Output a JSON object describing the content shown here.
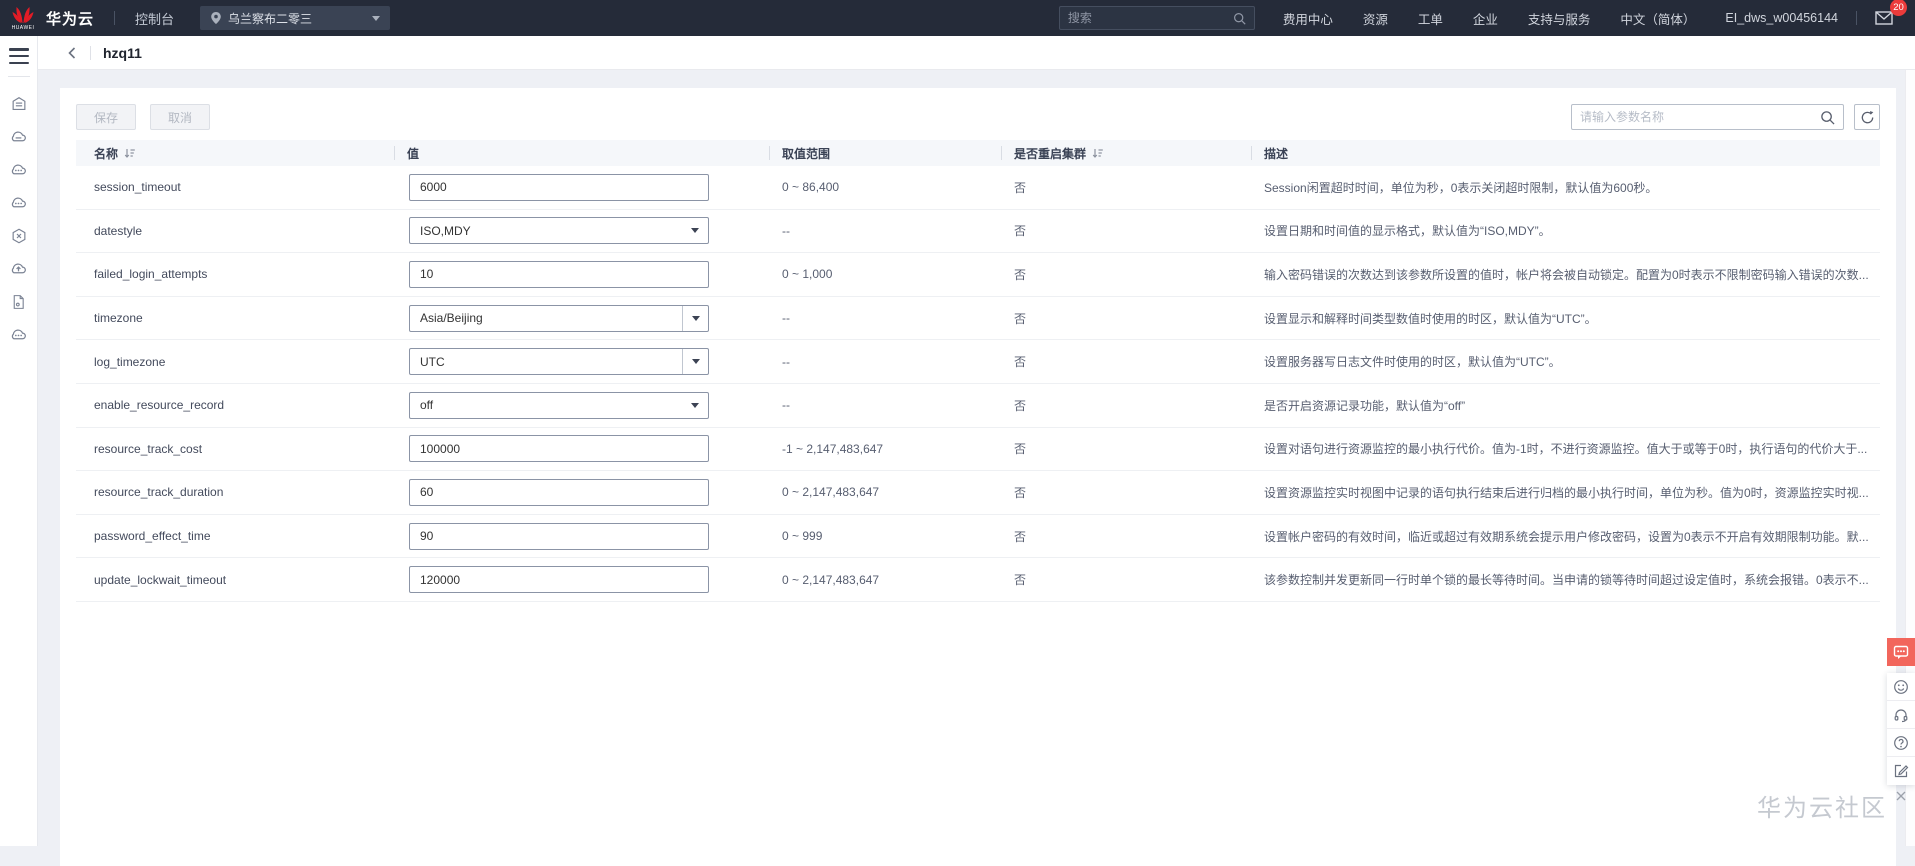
{
  "topbar": {
    "brand": "华为云",
    "logo_text": "HUAWEI",
    "console": "控制台",
    "region": "乌兰察布二零三",
    "search_placeholder": "搜索",
    "menu": [
      "费用中心",
      "资源",
      "工单",
      "企业",
      "支持与服务",
      "中文（简体）",
      "EI_dws_w00456144"
    ],
    "badge_count": "20"
  },
  "sidebar": {
    "icons": [
      "workbench-icon",
      "cloud-server-icon",
      "cloud-service-icon",
      "cloud-cluster-icon",
      "hexagon-x-icon",
      "cloud-upload-icon",
      "document-icon",
      "cloud-dots-icon"
    ]
  },
  "page": {
    "title": "hzq11",
    "save_label": "保存",
    "cancel_label": "取消",
    "search_placeholder": "请输入参数名称",
    "watermark": "华为云社区"
  },
  "table": {
    "headers": {
      "name": "名称",
      "value": "值",
      "range": "取值范围",
      "restart": "是否重启集群",
      "desc": "描述"
    },
    "rows": [
      {
        "name": "session_timeout",
        "control": "input",
        "value": "6000",
        "range": "0 ~ 86,400",
        "restart": "否",
        "desc": "Session闲置超时时间，单位为秒，0表示关闭超时限制，默认值为600秒。"
      },
      {
        "name": "datestyle",
        "control": "select",
        "value": "ISO,MDY",
        "range": "--",
        "restart": "否",
        "desc": "设置日期和时间值的显示格式，默认值为“ISO,MDY”。"
      },
      {
        "name": "failed_login_attempts",
        "control": "input",
        "value": "10",
        "range": "0 ~ 1,000",
        "restart": "否",
        "desc": "输入密码错误的次数达到该参数所设置的值时，帐户将会被自动锁定。配置为0时表示不限制密码输入错误的次数..."
      },
      {
        "name": "timezone",
        "control": "combo",
        "value": "Asia/Beijing",
        "range": "--",
        "restart": "否",
        "desc": "设置显示和解释时间类型数值时使用的时区，默认值为“UTC”。"
      },
      {
        "name": "log_timezone",
        "control": "combo",
        "value": "UTC",
        "range": "--",
        "restart": "否",
        "desc": "设置服务器写日志文件时使用的时区，默认值为“UTC”。"
      },
      {
        "name": "enable_resource_record",
        "control": "select",
        "value": "off",
        "range": "--",
        "restart": "否",
        "desc": "是否开启资源记录功能，默认值为“off”"
      },
      {
        "name": "resource_track_cost",
        "control": "input",
        "value": "100000",
        "range": "-1 ~ 2,147,483,647",
        "restart": "否",
        "desc": "设置对语句进行资源监控的最小执行代价。值为-1时，不进行资源监控。值大于或等于0时，执行语句的代价大于..."
      },
      {
        "name": "resource_track_duration",
        "control": "input",
        "value": "60",
        "range": "0 ~ 2,147,483,647",
        "restart": "否",
        "desc": "设置资源监控实时视图中记录的语句执行结束后进行归档的最小执行时间，单位为秒。值为0时，资源监控实时视..."
      },
      {
        "name": "password_effect_time",
        "control": "input",
        "value": "90",
        "range": "0 ~ 999",
        "restart": "否",
        "desc": "设置帐户密码的有效时间，临近或超过有效期系统会提示用户修改密码，设置为0表示不开启有效期限制功能。默..."
      },
      {
        "name": "update_lockwait_timeout",
        "control": "input",
        "value": "120000",
        "range": "0 ~ 2,147,483,647",
        "restart": "否",
        "desc": "该参数控制并发更新同一行时单个锁的最长等待时间。当申请的锁等待时间超过设定值时，系统会报错。0表示不..."
      }
    ]
  },
  "float_toolbar": {
    "icons": [
      "chat-icon",
      "feedback-smiley-icon",
      "support-headset-icon",
      "help-question-icon",
      "survey-edit-icon",
      "close-icon"
    ]
  },
  "colors": {
    "topbar_bg": "#252b39",
    "badge_red": "#eb3b3b",
    "chat_button_red": "#f2665c",
    "page_bg": "#eef0f5",
    "table_header_bg": "#f5f7fa"
  }
}
